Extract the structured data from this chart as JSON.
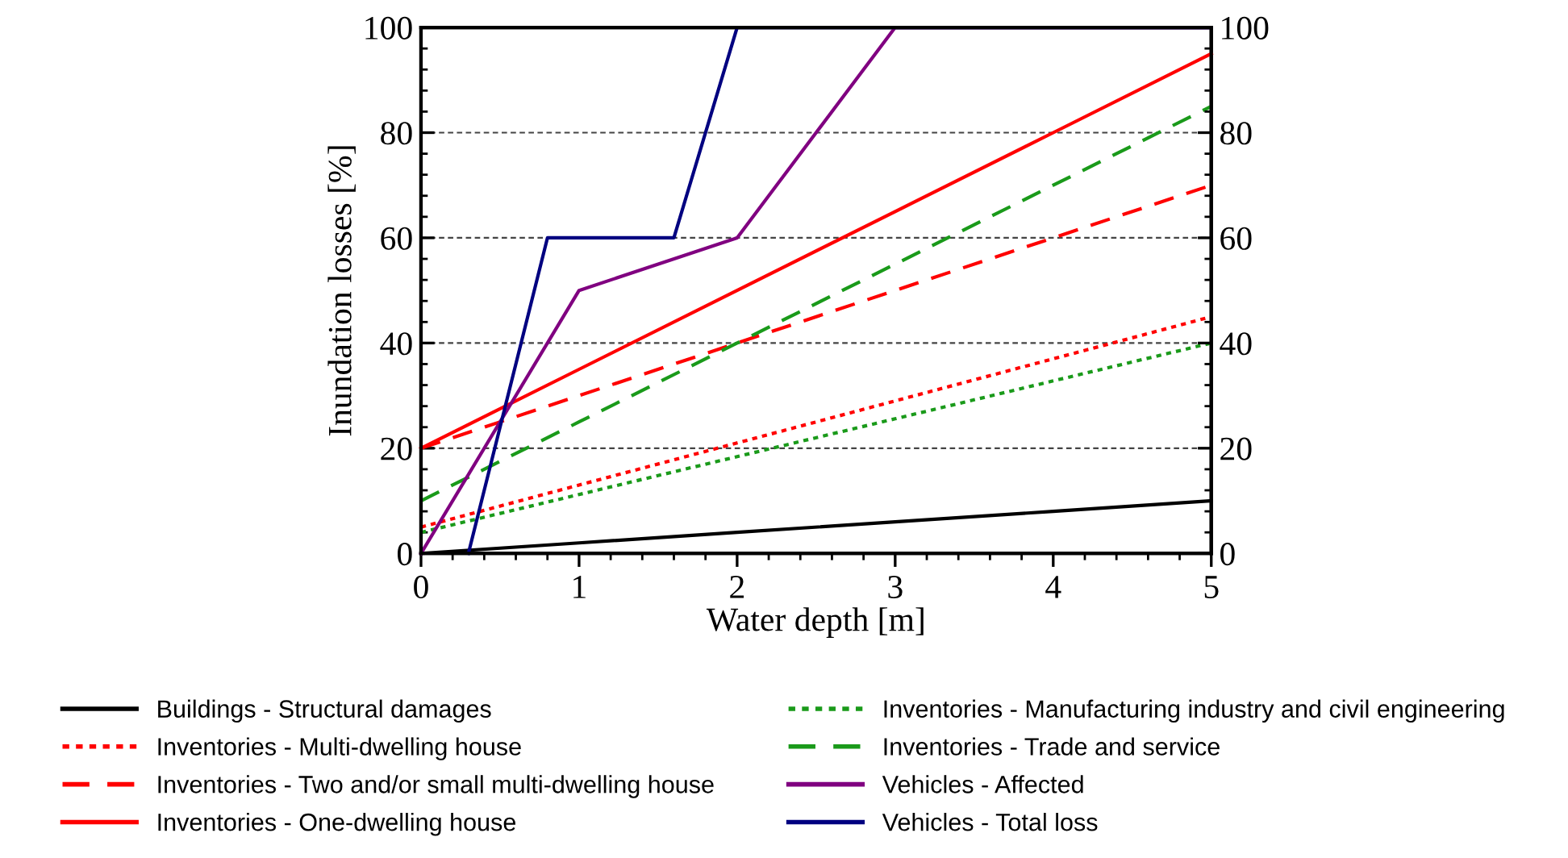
{
  "chart_data": {
    "type": "line",
    "xlabel": "Water depth [m]",
    "ylabel": "Inundation losses [%]",
    "xlim": [
      0,
      5
    ],
    "xticks": [
      0,
      1,
      2,
      3,
      4,
      5
    ],
    "ylim": [
      0,
      100
    ],
    "yticks": [
      0,
      20,
      40,
      60,
      80,
      100
    ],
    "y2lim": [
      0,
      100
    ],
    "y2ticks": [
      0,
      20,
      40,
      60,
      80,
      100
    ],
    "grid": "y",
    "legend": "bottom",
    "marker": "none",
    "series": [
      {
        "name": "Buildings - Structural damages",
        "color": "#000000",
        "line_style": "solid",
        "x": [
          0,
          1,
          2,
          3,
          4,
          5
        ],
        "values": [
          0,
          2,
          4,
          6,
          8,
          10
        ]
      },
      {
        "name": "Inventories - Multi-dwelling house",
        "color": "#ff0000",
        "line_style": "dotted",
        "x": [
          0,
          1,
          2,
          3,
          4,
          5
        ],
        "values": [
          5,
          13,
          21,
          29,
          37,
          45
        ]
      },
      {
        "name": "Inventories - Two and/or small multi-dwelling house",
        "color": "#ff0000",
        "line_style": "dashed",
        "x": [
          0,
          1,
          2,
          3,
          4,
          5
        ],
        "values": [
          20,
          30,
          40,
          50,
          60,
          70
        ]
      },
      {
        "name": "Inventories - One-dwelling house",
        "color": "#ff0000",
        "line_style": "solid",
        "x": [
          0,
          1,
          2,
          3,
          4,
          5
        ],
        "values": [
          20,
          35,
          50,
          65,
          80,
          95
        ]
      },
      {
        "name": "Inventories - Manufacturing industry and civil engineering",
        "color": "#1a9a1a",
        "line_style": "dotted",
        "x": [
          0,
          1,
          2,
          3,
          4,
          5
        ],
        "values": [
          4,
          11.2,
          18.4,
          25.6,
          32.8,
          40
        ]
      },
      {
        "name": "Inventories - Trade and service",
        "color": "#1a9a1a",
        "line_style": "dashed",
        "x": [
          0,
          1,
          2,
          3,
          4,
          5
        ],
        "values": [
          10,
          25,
          40,
          55,
          70,
          85
        ]
      },
      {
        "name": "Vehicles - Affected",
        "color": "#800080",
        "line_style": "solid",
        "x": [
          0,
          1,
          2,
          3,
          5
        ],
        "values": [
          0,
          50,
          60,
          100,
          100
        ]
      },
      {
        "name": "Vehicles - Total loss",
        "color": "#000080",
        "line_style": "solid",
        "x": [
          0.3,
          0.8,
          1.6,
          2,
          5
        ],
        "values": [
          0,
          60,
          60,
          100,
          100
        ]
      }
    ]
  }
}
